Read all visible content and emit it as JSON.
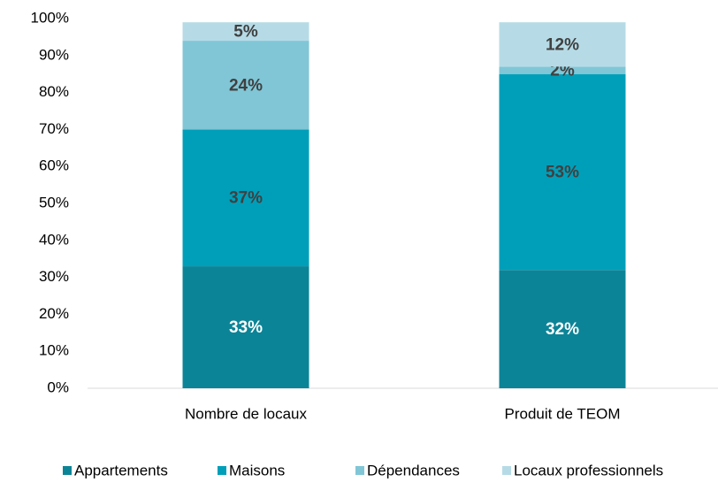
{
  "chart_data": {
    "type": "stacked_bar",
    "categories": [
      "Nombre de locaux",
      "Produit de TEOM"
    ],
    "series": [
      {
        "name": "Appartements",
        "color": "#0c8497",
        "label_color": "#ffffff",
        "values": [
          33,
          32
        ],
        "value_labels": [
          "33%",
          "32%"
        ]
      },
      {
        "name": "Maisons",
        "color": "#009fb9",
        "label_color": "#404040",
        "values": [
          37,
          53
        ],
        "value_labels": [
          "37%",
          "53%"
        ]
      },
      {
        "name": "Dépendances",
        "color": "#80c6d6",
        "label_color": "#404040",
        "values": [
          24,
          2
        ],
        "value_labels": [
          "24%",
          "2%"
        ]
      },
      {
        "name": "Locaux professionnels",
        "color": "#b6dbe6",
        "label_color": "#404040",
        "values": [
          5,
          12
        ],
        "value_labels": [
          "5%",
          "12%"
        ]
      }
    ],
    "ylim": [
      0,
      100
    ],
    "yticks": [
      {
        "value": 0,
        "label": "0%"
      },
      {
        "value": 10,
        "label": "10%"
      },
      {
        "value": 20,
        "label": "20%"
      },
      {
        "value": 30,
        "label": "30%"
      },
      {
        "value": 40,
        "label": "40%"
      },
      {
        "value": 50,
        "label": "50%"
      },
      {
        "value": 60,
        "label": "60%"
      },
      {
        "value": 70,
        "label": "70%"
      },
      {
        "value": 80,
        "label": "80%"
      },
      {
        "value": 90,
        "label": "90%"
      },
      {
        "value": 100,
        "label": "100%"
      }
    ],
    "grid": false,
    "legend": "bottom"
  }
}
